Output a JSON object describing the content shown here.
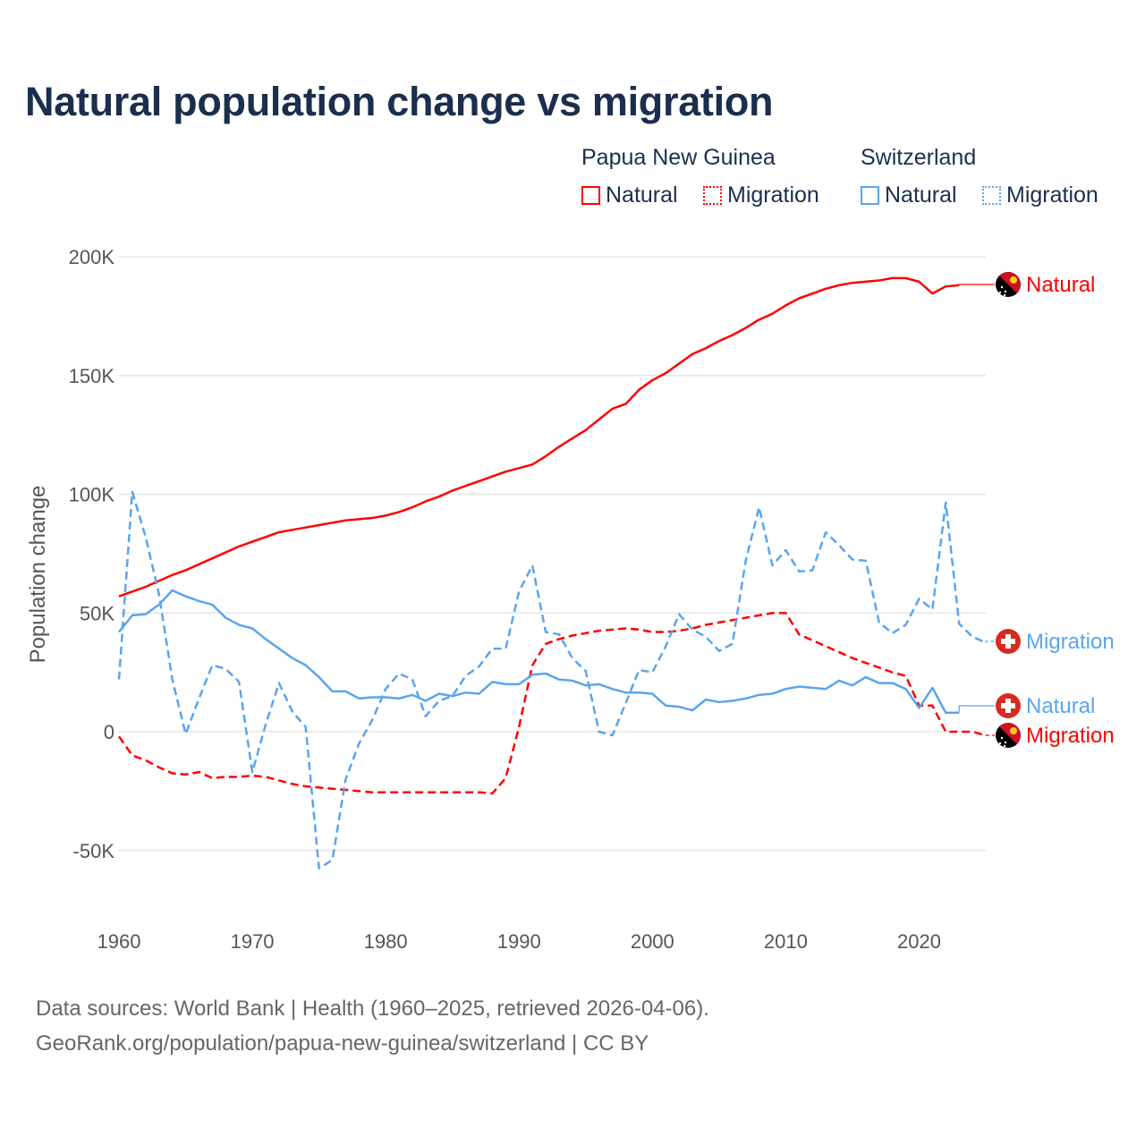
{
  "title": "Natural population change vs migration",
  "legend": {
    "groups": [
      {
        "name": "Papua New Guinea",
        "items": [
          "Natural",
          "Migration"
        ],
        "color": "#ff0000"
      },
      {
        "name": "Switzerland",
        "items": [
          "Natural",
          "Migration"
        ],
        "color": "#5aa5ec"
      }
    ]
  },
  "footer": {
    "line1": "Data sources: World Bank | Health (1960–2025, retrieved 2026-04-06).",
    "line2": "GeoRank.org/population/papua-new-guinea/switzerland | CC BY"
  },
  "chart_data": {
    "type": "line",
    "title": "Natural population change vs migration",
    "xlabel": "",
    "ylabel": "Population change",
    "xlim": [
      1960,
      2025
    ],
    "ylim": [
      -50000,
      200000
    ],
    "x_ticks": [
      1960,
      1970,
      1980,
      1990,
      2000,
      2010,
      2020
    ],
    "y_ticks": [
      {
        "v": 200000,
        "label": "200K"
      },
      {
        "v": 150000,
        "label": "150K"
      },
      {
        "v": 100000,
        "label": "100K"
      },
      {
        "v": 50000,
        "label": "50K"
      },
      {
        "v": 0,
        "label": "0"
      },
      {
        "v": -50000,
        "label": "-50K"
      }
    ],
    "grid": true,
    "legend_position": "top-right",
    "start_year": 1960,
    "series": [
      {
        "name": "Papua New Guinea – Natural",
        "end_label": "Natural",
        "color": "#ff0000",
        "dash": false,
        "flag": "png",
        "values_k": [
          57,
          59,
          61,
          63.5,
          66,
          68,
          70.5,
          73,
          75.5,
          78,
          80,
          82,
          84,
          85,
          86,
          87,
          88,
          89,
          89.5,
          90,
          91,
          92.5,
          94.5,
          97,
          99,
          101.5,
          103.5,
          105.5,
          107.5,
          109.5,
          111,
          112.5,
          116,
          120,
          123.5,
          127,
          131.5,
          136,
          138,
          144,
          148,
          151,
          155,
          159,
          161.5,
          164.5,
          167,
          170,
          173.5,
          176,
          179.5,
          182.5,
          184.5,
          186.5,
          188,
          189,
          189.5,
          190,
          191,
          191,
          189.5,
          184.5,
          187.5,
          188
        ]
      },
      {
        "name": "Papua New Guinea – Migration",
        "end_label": "Migration",
        "color": "#ff0000",
        "dash": true,
        "flag": "png",
        "values_k": [
          -2,
          -10,
          -12,
          -15,
          -17.5,
          -18,
          -17,
          -19.5,
          -19,
          -19,
          -18.5,
          -19,
          -20.5,
          -22,
          -23,
          -23.5,
          -24,
          -24.5,
          -25,
          -25.5,
          -25.5,
          -25.5,
          -25.5,
          -25.5,
          -25.5,
          -25.5,
          -25.5,
          -25.5,
          -26,
          -19.5,
          2,
          28,
          37,
          39,
          40.5,
          41.5,
          42.5,
          43,
          43.5,
          43,
          42,
          42,
          42.5,
          43.5,
          45,
          46,
          47,
          48,
          49,
          50,
          50,
          41,
          38.5,
          36,
          33.5,
          31,
          29,
          27,
          25,
          23.5,
          11,
          11,
          0,
          0,
          0,
          -1.5
        ]
      },
      {
        "name": "Switzerland – Natural",
        "end_label": "Natural",
        "color": "#5aa5ec",
        "dash": false,
        "flag": "ch",
        "values_k": [
          42,
          49,
          49.5,
          53.5,
          59.5,
          57,
          55,
          53.5,
          48,
          45,
          43.5,
          39,
          35,
          31,
          28,
          23,
          17,
          17,
          14,
          14.5,
          14.5,
          14,
          15.5,
          13,
          16,
          15,
          16.5,
          16,
          21,
          20,
          20,
          24,
          24.5,
          22,
          21.5,
          19.5,
          20,
          18,
          16.5,
          16.5,
          16,
          11,
          10.5,
          9,
          13.5,
          12.5,
          13,
          14,
          15.5,
          16,
          18,
          19,
          18.5,
          18,
          21.5,
          19.5,
          23,
          20.5,
          20.5,
          18,
          10,
          18.5,
          8,
          8
        ]
      },
      {
        "name": "Switzerland – Migration",
        "end_label": "Migration",
        "color": "#5aa5ec",
        "dash": true,
        "flag": "ch",
        "values_k": [
          22,
          101,
          82,
          58,
          22,
          -1,
          14,
          28,
          26.5,
          21,
          -17,
          3,
          20.5,
          8.5,
          2,
          -57.5,
          -54,
          -20,
          -5,
          5,
          18,
          24.5,
          22,
          6.5,
          13,
          15,
          23.5,
          27.5,
          35,
          35,
          59,
          70,
          42,
          41,
          31,
          25.5,
          0,
          -1.5,
          12,
          26,
          25,
          36,
          49.5,
          43,
          40,
          34,
          37,
          72,
          94.5,
          70,
          76.5,
          67.5,
          68,
          84,
          78.5,
          72.5,
          72,
          46,
          41.5,
          45,
          56,
          51.5,
          96.5,
          45.5,
          40,
          37.5
        ]
      }
    ]
  }
}
